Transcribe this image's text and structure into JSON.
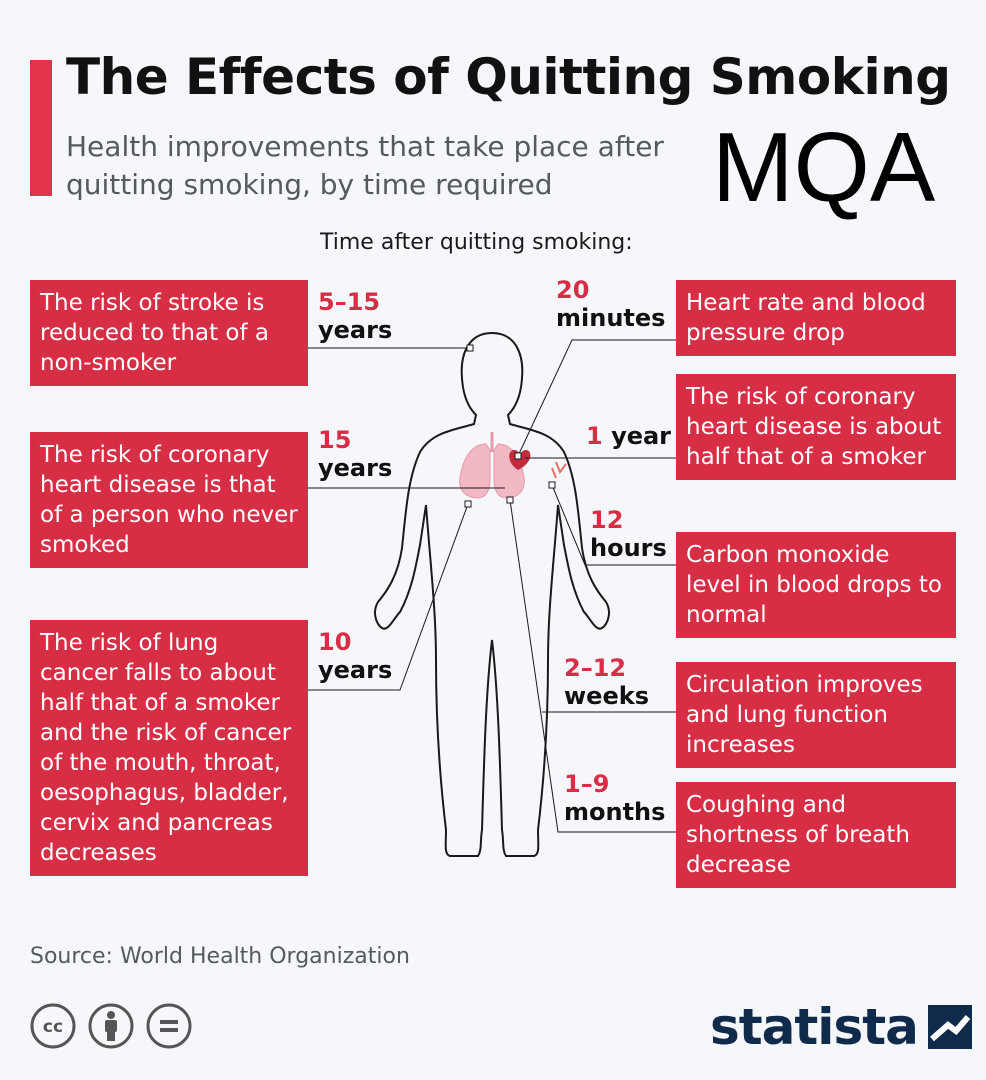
{
  "header": {
    "title": "The Effects of Quitting Smoking",
    "subtitle": "Health improvements that take place after quitting smoking, by time required"
  },
  "watermark": "MQA",
  "time_caption": "Time after quitting smoking:",
  "left_items": [
    {
      "time_value": "5–15",
      "time_unit": "years",
      "text": "The risk of stroke is reduced to that of a non-smoker"
    },
    {
      "time_value": "15",
      "time_unit": "years",
      "text": "The risk of coronary heart disease is that of a person who never smoked"
    },
    {
      "time_value": "10",
      "time_unit": "years",
      "text": "The risk of lung cancer falls to about half that of a smoker and the risk of cancer of the mouth, throat, oesophagus, bladder, cervix and pancreas decreases"
    }
  ],
  "right_items": [
    {
      "time_value": "20",
      "time_unit": "minutes",
      "text": "Heart rate and blood pressure drop"
    },
    {
      "time_value": "1",
      "time_unit": "year",
      "text": "The risk of coronary heart disease is about half that of a smoker"
    },
    {
      "time_value": "12",
      "time_unit": "hours",
      "text": "Carbon monoxide level in blood drops to normal"
    },
    {
      "time_value": "2–12",
      "time_unit": "weeks",
      "text": "Circulation improves and lung function increases"
    },
    {
      "time_value": "1–9",
      "time_unit": "months",
      "text": "Coughing and shortness of breath decrease"
    }
  ],
  "footer": {
    "source": "Source: World Health Organization",
    "brand": "statista"
  },
  "colors": {
    "accent": "#d82e45",
    "brand": "#102a4c",
    "lungs": "#f2b8c4",
    "heart": "#c22a3d"
  },
  "icons": [
    "cc-icon",
    "by-attribution-icon",
    "nd-equals-icon",
    "statista-logo-icon",
    "human-body-icon",
    "lungs-icon",
    "heart-icon",
    "blood-vessel-icon"
  ]
}
